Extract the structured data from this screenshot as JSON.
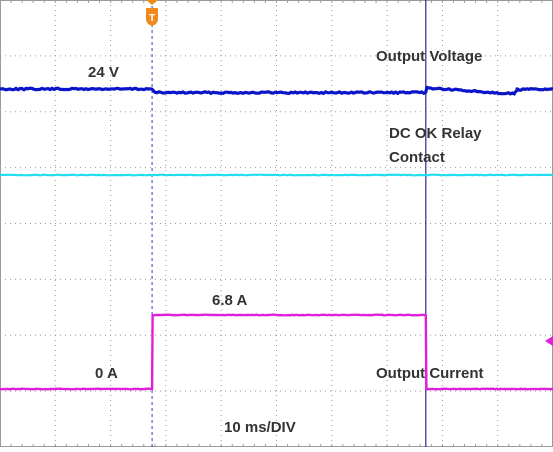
{
  "chart_data": {
    "type": "line",
    "title": "",
    "xlabel": "10 ms/DIV",
    "ylabel": "",
    "x_unit": "ms",
    "x_per_div_ms": 10,
    "xlim_ms": [
      0,
      100
    ],
    "grid": true,
    "trigger_marker": "T",
    "trigger_time_ms": 27.5,
    "cursor_time_ms": 77.0,
    "annotations": [
      {
        "key": "v_level",
        "text": "24 V"
      },
      {
        "key": "v_label",
        "text": "Output Voltage"
      },
      {
        "key": "relay_label_1",
        "text": "DC OK Relay"
      },
      {
        "key": "relay_label_2",
        "text": "Contact"
      },
      {
        "key": "i_high",
        "text": "6.8 A"
      },
      {
        "key": "i_low",
        "text": "0 A"
      },
      {
        "key": "i_label",
        "text": "Output Current"
      },
      {
        "key": "timebase",
        "text": "10 ms/DIV"
      }
    ],
    "series": [
      {
        "key": "voltage",
        "color": "#0a14c8",
        "points": [
          [
            0,
            24.0
          ],
          [
            27.5,
            24.0
          ],
          [
            28.0,
            23.7
          ],
          [
            77.0,
            23.7
          ],
          [
            77.2,
            24.1
          ],
          [
            83.0,
            23.9
          ],
          [
            93.0,
            23.6
          ],
          [
            93.5,
            23.95
          ],
          [
            100,
            24.0
          ]
        ]
      },
      {
        "key": "relay",
        "color": "#22ddee",
        "points": [
          [
            0,
            1
          ],
          [
            100,
            1
          ]
        ]
      },
      {
        "key": "current",
        "color": "#e020d8",
        "unit": "A",
        "points": [
          [
            0,
            0
          ],
          [
            27.5,
            0
          ],
          [
            27.6,
            6.8
          ],
          [
            77.0,
            6.8
          ],
          [
            77.1,
            0
          ],
          [
            100,
            0
          ]
        ]
      }
    ]
  },
  "colors": {
    "background": "#ffffff",
    "grid": "#9a9a9a",
    "trigger": "#f08a1c",
    "cursor": "#2a2a8a"
  },
  "icons": {
    "trigger": "trigger-marker-icon",
    "offset": "channel-offset-icon"
  }
}
